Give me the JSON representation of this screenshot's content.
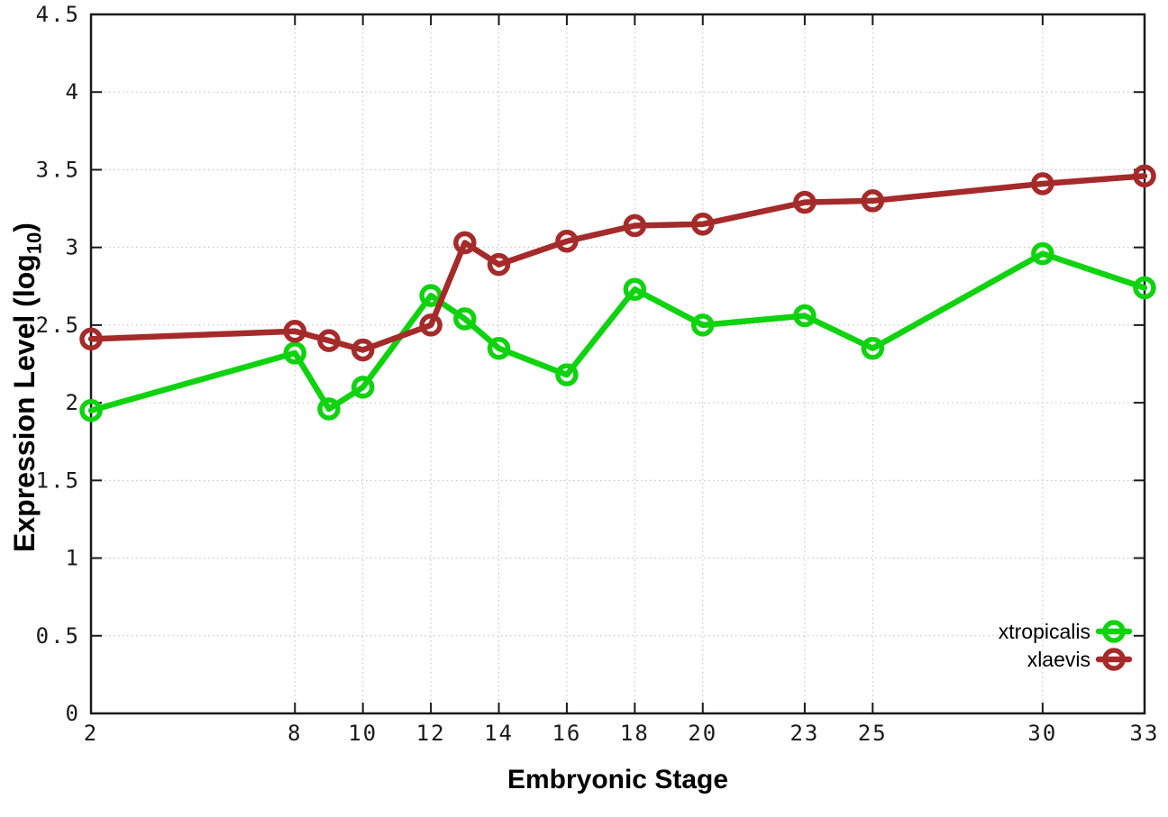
{
  "figure": {
    "background": "#ffffff"
  },
  "chart_data": {
    "type": "line",
    "title": "",
    "xlabel": "Embryonic Stage",
    "ylabel": "Expression Level (log10)",
    "ylabel_parts": {
      "main": "Expression Level (log",
      "sub": "10",
      "end": ")"
    },
    "xlim": [
      2,
      33
    ],
    "ylim": [
      0,
      4.5
    ],
    "grid": true,
    "grid_style": "dotted",
    "legend_position": "bottom-right-inside",
    "axis_color": "#1a1a1a",
    "grid_color": "#bdbdbd",
    "x_ticks": {
      "values": [
        2,
        8,
        10,
        12,
        14,
        16,
        18,
        20,
        23,
        25,
        30,
        33
      ],
      "labels": [
        "2",
        "8",
        "10",
        "12",
        "14",
        "16",
        "18",
        "20",
        "23",
        "25",
        "30",
        "33"
      ]
    },
    "y_ticks": {
      "values": [
        0,
        0.5,
        1,
        1.5,
        2,
        2.5,
        3,
        3.5,
        4,
        4.5
      ],
      "labels": [
        "0",
        "0.5",
        "1",
        "1.5",
        "2",
        "2.5",
        "3",
        "3.5",
        "4",
        "4.5"
      ]
    },
    "x": [
      2,
      8,
      9,
      10,
      12,
      13,
      14,
      16,
      18,
      20,
      23,
      25,
      30,
      33
    ],
    "series": [
      {
        "name": "xtropicalis",
        "color": "#0ed30e",
        "marker": "open-circle",
        "values": [
          1.95,
          2.32,
          1.96,
          2.1,
          2.69,
          2.54,
          2.35,
          2.18,
          2.73,
          2.5,
          2.56,
          2.35,
          2.96,
          2.74
        ]
      },
      {
        "name": "xlaevis",
        "color": "#a52a2a",
        "marker": "open-circle",
        "values": [
          2.41,
          2.46,
          2.4,
          2.34,
          2.5,
          3.03,
          2.89,
          3.04,
          3.14,
          3.15,
          3.29,
          3.3,
          3.41,
          3.46
        ]
      }
    ]
  }
}
